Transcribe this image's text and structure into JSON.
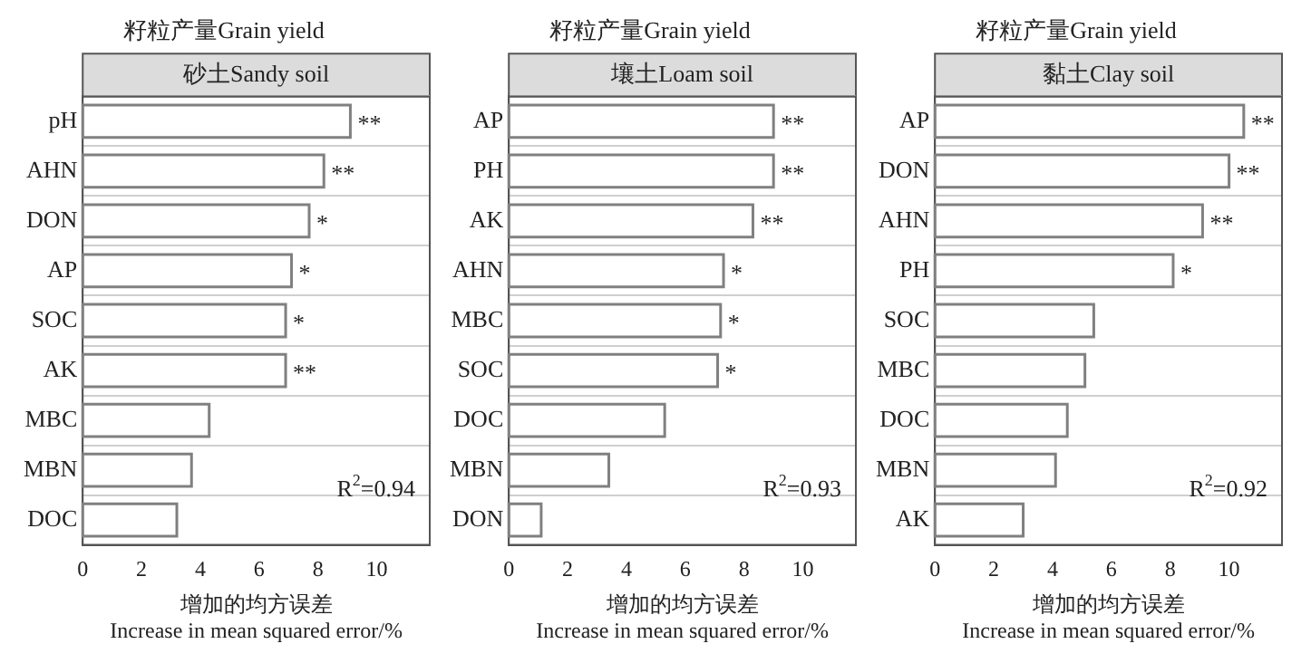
{
  "chart_data": [
    {
      "type": "bar",
      "orientation": "horizontal",
      "title": "籽粒产量Grain yield",
      "subtitle": "砂土Sandy soil",
      "xlabel": "增加的均方误差\nIncrease in mean squared error/%",
      "categories": [
        "pH",
        "AHN",
        "DON",
        "AP",
        "SOC",
        "AK",
        "MBC",
        "MBN",
        "DOC"
      ],
      "values": [
        9.1,
        8.2,
        7.7,
        7.1,
        6.9,
        6.9,
        4.3,
        3.7,
        3.2
      ],
      "value_labels": [
        "**",
        "**",
        "*",
        "*",
        "*",
        "**",
        null,
        null,
        null
      ],
      "color": "#ffffff",
      "xlim": [
        0,
        11.8
      ],
      "xticks": [
        0,
        2,
        4,
        6,
        8,
        10
      ],
      "grid": "y",
      "legend": false,
      "annotations": [
        "R$^{2}$=0.94"
      ]
    },
    {
      "type": "bar",
      "orientation": "horizontal",
      "title": "籽粒产量Grain yield",
      "subtitle": "壤土Loam soil",
      "xlabel": "增加的均方误差\nIncrease in mean squared error/%",
      "categories": [
        "AP",
        "PH",
        "AK",
        "AHN",
        "MBC",
        "SOC",
        "DOC",
        "MBN",
        "DON"
      ],
      "values": [
        9.0,
        9.0,
        8.3,
        7.3,
        7.2,
        7.1,
        5.3,
        3.4,
        1.1
      ],
      "value_labels": [
        "**",
        "**",
        "**",
        "*",
        "*",
        "*",
        null,
        null,
        null
      ],
      "color": "#ffffff",
      "xlim": [
        0,
        11.8
      ],
      "xticks": [
        0,
        2,
        4,
        6,
        8,
        10
      ],
      "grid": "y",
      "legend": false,
      "annotations": [
        "R$^{2}$=0.93"
      ]
    },
    {
      "type": "bar",
      "orientation": "horizontal",
      "title": "籽粒产量Grain yield",
      "subtitle": "黏土Clay soil",
      "xlabel": "增加的均方误差\nIncrease in mean squared error/%",
      "categories": [
        "AP",
        "DON",
        "AHN",
        "PH",
        "SOC",
        "MBC",
        "DOC",
        "MBN",
        "AK"
      ],
      "values": [
        10.5,
        10.0,
        9.1,
        8.1,
        5.4,
        5.1,
        4.5,
        4.1,
        3.0
      ],
      "value_labels": [
        "**",
        "**",
        "**",
        "*",
        null,
        null,
        null,
        null,
        null
      ],
      "color": "#ffffff",
      "xlim": [
        0,
        11.8
      ],
      "xticks": [
        0,
        2,
        4,
        6,
        8,
        10
      ],
      "grid": "y",
      "legend": false,
      "annotations": [
        "R$^{2}$=0.92"
      ]
    }
  ]
}
